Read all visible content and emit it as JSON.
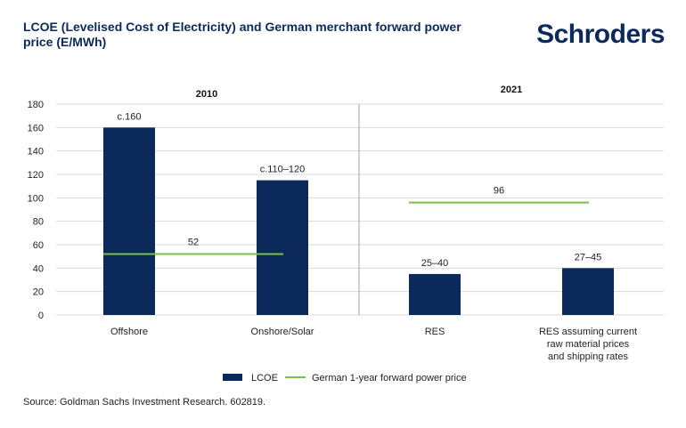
{
  "header": {
    "title": "LCOE (Levelised Cost of Electricity) and German merchant forward power price (E/MWh)",
    "brand": "Schroders"
  },
  "source": "Source: Goldman Sachs Investment Research. 602819.",
  "colors": {
    "bar": "#0b2a5b",
    "line": "#7ac143",
    "grid": "#d9d9d9",
    "divider": "#a6a6a6"
  },
  "chart_data": {
    "type": "bar",
    "title": "LCOE (Levelised Cost of Electricity) and German merchant forward power price (E/MWh)",
    "ylim": [
      0,
      180
    ],
    "yticks": [
      0,
      20,
      40,
      60,
      80,
      100,
      120,
      140,
      160,
      180
    ],
    "groups": [
      {
        "label": "2010",
        "categories": [
          "Offshore",
          "Onshore/Solar"
        ],
        "forward_price": 52,
        "forward_price_label": "52"
      },
      {
        "label": "2021",
        "categories": [
          "RES",
          "RES assuming current raw material prices and shipping rates"
        ],
        "forward_price": 96,
        "forward_price_label": "96"
      }
    ],
    "categories": [
      [
        "Offshore"
      ],
      [
        "Onshore/Solar"
      ],
      [
        "RES"
      ],
      [
        "RES assuming current",
        "raw material prices",
        "and shipping rates"
      ]
    ],
    "series": [
      {
        "name": "LCOE",
        "values": [
          160,
          115,
          35,
          40
        ],
        "labels": [
          "c.160",
          "c.110–120",
          "25–40",
          "27–45"
        ]
      },
      {
        "name": "German 1-year forward power price",
        "values": [
          52,
          52,
          96,
          96
        ]
      }
    ],
    "legend": [
      "LCOE",
      "German 1-year forward power price"
    ]
  }
}
